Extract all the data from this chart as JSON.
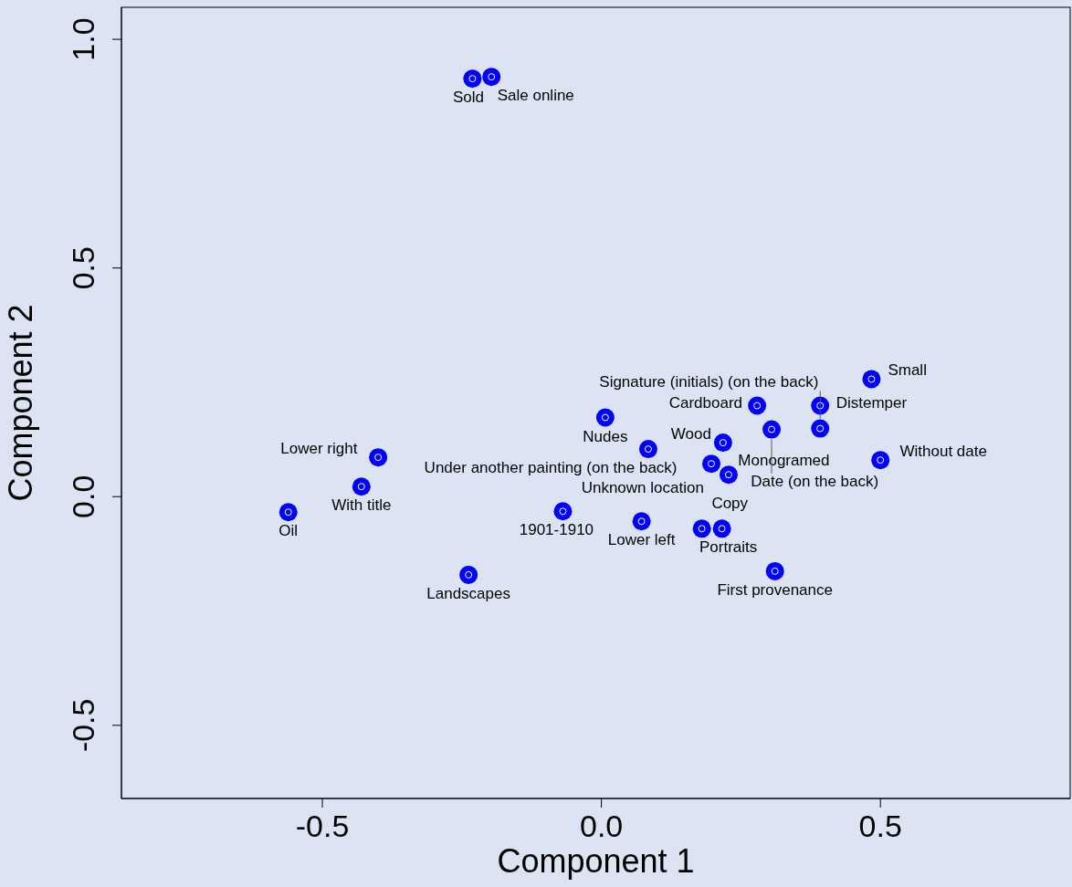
{
  "chart_data": {
    "type": "scatter",
    "xlabel": "Component 1",
    "ylabel": "Component 2",
    "xlim": [
      -0.86,
      0.84
    ],
    "xticks": [
      {
        "value": -0.5,
        "label": "-0.5"
      },
      {
        "value": 0,
        "label": "0.0"
      },
      {
        "value": 0.5,
        "label": "0.5"
      }
    ],
    "ylim": [
      -0.66,
      1.07
    ],
    "yticks": [
      {
        "value": -0.5,
        "label": "-0.5"
      },
      {
        "value": 0,
        "label": "0.0"
      },
      {
        "value": 0.5,
        "label": "0.5"
      },
      {
        "value": 1,
        "label": "1.0"
      }
    ],
    "grid": false,
    "legend": false,
    "marker": "circle",
    "series": [
      {
        "color": "#0000ff",
        "x": [
          -0.231,
          -0.197,
          -0.561,
          -0.43,
          -0.4,
          -0.238,
          -0.069,
          0.007,
          0.072,
          0.084,
          0.197,
          0.228,
          0.218,
          0.392,
          0.305,
          0.279,
          0.392,
          0.484,
          0.5,
          0.18,
          0.216,
          0.311
        ],
        "values": [
          0.914,
          0.918,
          -0.034,
          0.022,
          0.086,
          -0.171,
          -0.032,
          0.173,
          -0.054,
          0.104,
          0.072,
          0.048,
          0.118,
          0.149,
          0.147,
          0.199,
          0.199,
          0.257,
          0.08,
          -0.07,
          -0.07,
          -0.163
        ],
        "value_labels": [
          "Sold",
          "Sale online",
          "Oil",
          "With title",
          "Lower right",
          "Landscapes",
          "1901-1910",
          "Nudes",
          "Lower left",
          "Under another painting (on the back)",
          "Unknown location",
          "Monogramed",
          "Wood",
          "Signature (initials) (on the back)",
          "Date (on the back)",
          "Cardboard",
          "Distemper",
          "Small",
          "Without date",
          "Copy",
          "Portraits",
          "First provenance"
        ]
      }
    ]
  }
}
